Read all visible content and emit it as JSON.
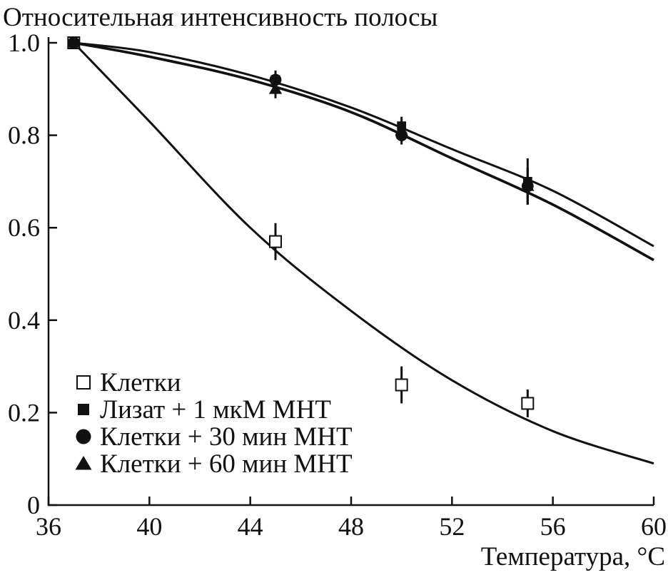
{
  "chart_data": {
    "type": "scatter",
    "title": "",
    "ylabel": "Относительная интенсивность полосы",
    "xlabel": "Температура, °С",
    "xlim": [
      36,
      60
    ],
    "ylim": [
      0,
      1.0
    ],
    "x_ticks": [
      {
        "value": 36,
        "label": "36"
      },
      {
        "value": 40,
        "label": "40"
      },
      {
        "value": 44,
        "label": "44"
      },
      {
        "value": 48,
        "label": "48"
      },
      {
        "value": 52,
        "label": "52"
      },
      {
        "value": 56,
        "label": "56"
      },
      {
        "value": 60,
        "label": "60"
      }
    ],
    "y_ticks": [
      {
        "value": 0,
        "label": "0"
      },
      {
        "value": 0.2,
        "label": "0.2"
      },
      {
        "value": 0.4,
        "label": "0.4"
      },
      {
        "value": 0.6,
        "label": "0.6"
      },
      {
        "value": 0.8,
        "label": "0.8"
      },
      {
        "value": 1.0,
        "label": "1.0"
      }
    ],
    "grid": false,
    "legend_position": "bottom-left",
    "series": [
      {
        "name": "Клетки",
        "marker": "open-square",
        "points": [
          {
            "x": 37,
            "y": 1.0,
            "err": 0.0
          },
          {
            "x": 45,
            "y": 0.57,
            "err": 0.04
          },
          {
            "x": 50,
            "y": 0.26,
            "err": 0.04
          },
          {
            "x": 55,
            "y": 0.22,
            "err": 0.03
          }
        ],
        "curve": [
          {
            "x": 37,
            "y": 1.0
          },
          {
            "x": 40,
            "y": 0.83
          },
          {
            "x": 44,
            "y": 0.6
          },
          {
            "x": 48,
            "y": 0.42
          },
          {
            "x": 52,
            "y": 0.27
          },
          {
            "x": 56,
            "y": 0.16
          },
          {
            "x": 60,
            "y": 0.09
          }
        ]
      },
      {
        "name": "Лизат + 1 мкМ МНТ",
        "marker": "filled-square",
        "points": [
          {
            "x": 37,
            "y": 1.0,
            "err": 0.0
          },
          {
            "x": 45,
            "y": 0.92,
            "err": 0.02
          },
          {
            "x": 50,
            "y": 0.82,
            "err": 0.02
          },
          {
            "x": 55,
            "y": 0.7,
            "err": 0.05
          }
        ],
        "curve": [
          {
            "x": 37,
            "y": 1.0
          },
          {
            "x": 40,
            "y": 0.98
          },
          {
            "x": 44,
            "y": 0.93
          },
          {
            "x": 48,
            "y": 0.86
          },
          {
            "x": 52,
            "y": 0.77
          },
          {
            "x": 56,
            "y": 0.68
          },
          {
            "x": 60,
            "y": 0.56
          }
        ]
      },
      {
        "name": "Клетки + 30 мин МНТ",
        "marker": "filled-circle",
        "points": [
          {
            "x": 37,
            "y": 1.0,
            "err": 0.0
          },
          {
            "x": 45,
            "y": 0.92,
            "err": 0.02
          },
          {
            "x": 50,
            "y": 0.8,
            "err": 0.02
          },
          {
            "x": 55,
            "y": 0.69,
            "err": 0.04
          }
        ],
        "curve": [
          {
            "x": 37,
            "y": 1.0
          },
          {
            "x": 40,
            "y": 0.97
          },
          {
            "x": 44,
            "y": 0.92
          },
          {
            "x": 48,
            "y": 0.85
          },
          {
            "x": 52,
            "y": 0.75
          },
          {
            "x": 56,
            "y": 0.65
          },
          {
            "x": 60,
            "y": 0.53
          }
        ]
      },
      {
        "name": "Клетки + 60 мин МНТ",
        "marker": "filled-triangle",
        "points": [
          {
            "x": 37,
            "y": 1.0,
            "err": 0.0
          },
          {
            "x": 45,
            "y": 0.9,
            "err": 0.02
          },
          {
            "x": 50,
            "y": 0.81,
            "err": 0.02
          },
          {
            "x": 55,
            "y": 0.69,
            "err": 0.04
          }
        ],
        "curve": [
          {
            "x": 37,
            "y": 1.0
          },
          {
            "x": 40,
            "y": 0.97
          },
          {
            "x": 44,
            "y": 0.92
          },
          {
            "x": 48,
            "y": 0.85
          },
          {
            "x": 52,
            "y": 0.75
          },
          {
            "x": 56,
            "y": 0.65
          },
          {
            "x": 60,
            "y": 0.53
          }
        ]
      }
    ]
  }
}
